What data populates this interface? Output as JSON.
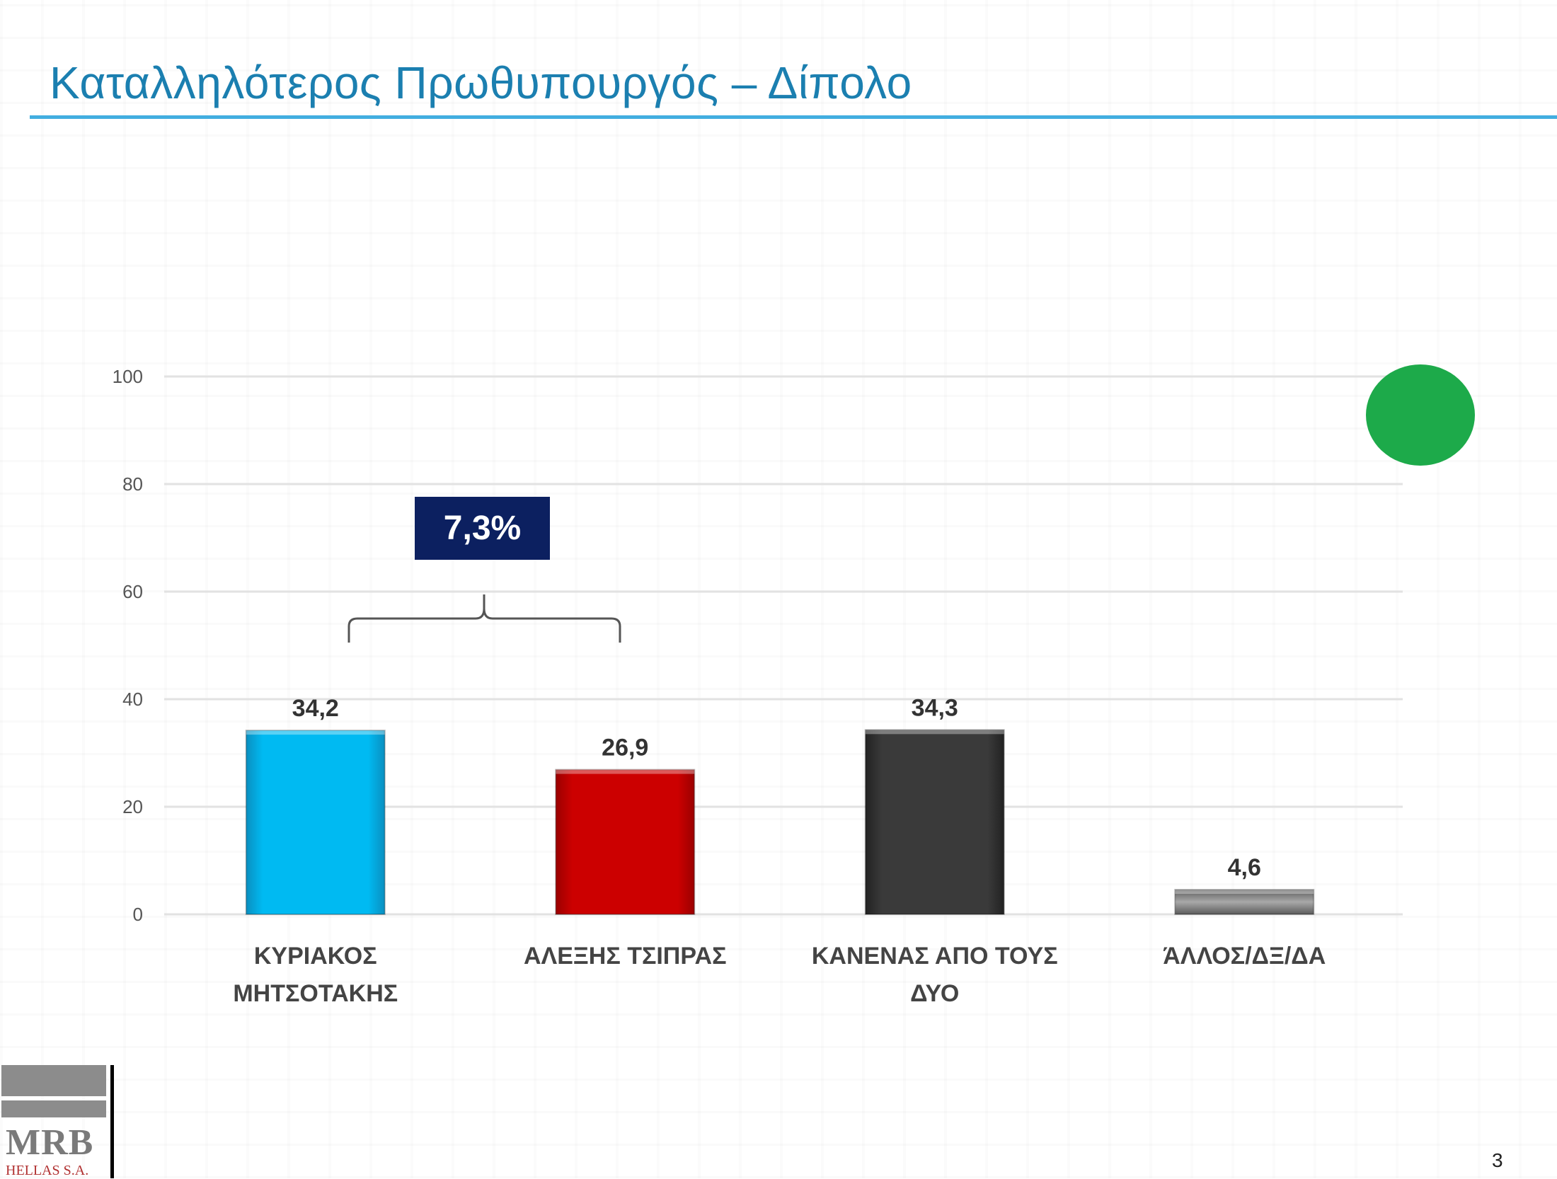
{
  "title": "Καταλληλότερος Πρωθυπουργός – Δίπολο",
  "gap_label": "7,3%",
  "page_number": "3",
  "logo": {
    "name": "MRB",
    "subtitle": "HELLAS S.A."
  },
  "colors": {
    "title": "#1b7fb0",
    "rule": "#42aee0",
    "gap_box": "#0c2060",
    "green_dot": "#1daa4a"
  },
  "chart_data": {
    "type": "bar",
    "categories": [
      [
        "ΚΥΡΙΑΚΟΣ",
        "ΜΗΤΣΟΤΑΚΗΣ"
      ],
      [
        "ΑΛΕΞΗΣ ΤΣΙΠΡΑΣ"
      ],
      [
        "ΚΑΝΕΝΑΣ ΑΠΟ ΤΟΥΣ",
        "ΔΥΟ"
      ],
      [
        "ΆΛΛΟΣ/ΔΞ/ΔΑ"
      ]
    ],
    "values": [
      34.2,
      26.9,
      34.3,
      4.6
    ],
    "value_labels": [
      "34,2",
      "26,9",
      "34,3",
      "4,6"
    ],
    "bar_colors": [
      "#00b8f0",
      "#c80000",
      "#383838",
      "#8a8a8a"
    ],
    "y_ticks": [
      0,
      20,
      40,
      60,
      80,
      100
    ],
    "ylim": [
      0,
      100
    ],
    "grid": true,
    "annotation": {
      "text": "7,3%",
      "spans_categories": [
        0,
        1
      ]
    }
  }
}
